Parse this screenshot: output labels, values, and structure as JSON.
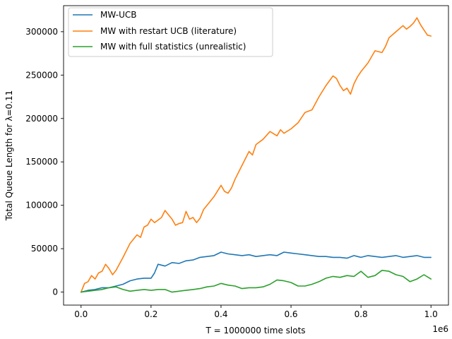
{
  "chart_data": {
    "type": "line",
    "title": "",
    "xlabel": "T = 1000000 time slots",
    "ylabel": "Total Queue Length for λ=0.11",
    "x_offset_label": "1e6",
    "xlim": [
      -0.05,
      1.05
    ],
    "ylim": [
      -15000,
      330000
    ],
    "x_ticks": [
      0.0,
      0.2,
      0.4,
      0.6,
      0.8,
      1.0
    ],
    "x_tick_labels": [
      "0.0",
      "0.2",
      "0.4",
      "0.6",
      "0.8",
      "1.0"
    ],
    "y_ticks": [
      0,
      50000,
      100000,
      150000,
      200000,
      250000,
      300000
    ],
    "y_tick_labels": [
      "0",
      "50000",
      "100000",
      "150000",
      "200000",
      "250000",
      "300000"
    ],
    "grid": false,
    "legend_position": "top-left",
    "series": [
      {
        "name": "MW-UCB",
        "color": "#1f77b4",
        "x": [
          0.0,
          0.02,
          0.04,
          0.06,
          0.08,
          0.1,
          0.12,
          0.14,
          0.16,
          0.18,
          0.2,
          0.21,
          0.22,
          0.24,
          0.26,
          0.28,
          0.3,
          0.32,
          0.34,
          0.36,
          0.38,
          0.4,
          0.42,
          0.44,
          0.46,
          0.48,
          0.5,
          0.52,
          0.54,
          0.56,
          0.58,
          0.6,
          0.62,
          0.64,
          0.66,
          0.68,
          0.7,
          0.72,
          0.74,
          0.76,
          0.78,
          0.8,
          0.82,
          0.84,
          0.86,
          0.88,
          0.9,
          0.92,
          0.94,
          0.96,
          0.98,
          1.0
        ],
        "y": [
          0,
          2000,
          3000,
          5000,
          5000,
          7000,
          9000,
          13000,
          15000,
          16000,
          16000,
          22000,
          32000,
          30000,
          34000,
          33000,
          36000,
          37000,
          40000,
          41000,
          42000,
          46000,
          44000,
          43000,
          42000,
          43000,
          41000,
          42000,
          43000,
          42000,
          46000,
          45000,
          44000,
          43000,
          42000,
          41000,
          41000,
          40000,
          40000,
          39000,
          42000,
          40000,
          42000,
          41000,
          40000,
          41000,
          42000,
          40000,
          41000,
          42000,
          40000,
          40000
        ]
      },
      {
        "name": "MW with restart UCB (literature)",
        "color": "#ff7f0e",
        "x": [
          0.0,
          0.01,
          0.02,
          0.03,
          0.04,
          0.05,
          0.06,
          0.07,
          0.08,
          0.09,
          0.1,
          0.12,
          0.14,
          0.16,
          0.17,
          0.18,
          0.19,
          0.2,
          0.21,
          0.22,
          0.23,
          0.24,
          0.25,
          0.26,
          0.27,
          0.28,
          0.29,
          0.3,
          0.31,
          0.32,
          0.33,
          0.34,
          0.35,
          0.36,
          0.38,
          0.4,
          0.41,
          0.42,
          0.43,
          0.44,
          0.46,
          0.48,
          0.49,
          0.5,
          0.52,
          0.54,
          0.56,
          0.57,
          0.58,
          0.6,
          0.62,
          0.64,
          0.66,
          0.68,
          0.7,
          0.72,
          0.73,
          0.74,
          0.75,
          0.76,
          0.77,
          0.78,
          0.79,
          0.8,
          0.82,
          0.84,
          0.86,
          0.87,
          0.88,
          0.9,
          0.92,
          0.93,
          0.94,
          0.95,
          0.96,
          0.97,
          0.98,
          0.99,
          1.0
        ],
        "y": [
          0,
          10000,
          12000,
          19000,
          15000,
          22000,
          24000,
          32000,
          27000,
          20000,
          25000,
          40000,
          56000,
          66000,
          63000,
          75000,
          77000,
          84000,
          80000,
          83000,
          86000,
          94000,
          89000,
          84000,
          77000,
          79000,
          80000,
          93000,
          84000,
          86000,
          80000,
          85000,
          95000,
          100000,
          110000,
          123000,
          116000,
          114000,
          120000,
          130000,
          146000,
          162000,
          158000,
          170000,
          176000,
          185000,
          180000,
          187000,
          183000,
          188000,
          195000,
          207000,
          210000,
          225000,
          238000,
          249000,
          246000,
          238000,
          232000,
          235000,
          228000,
          240000,
          248000,
          254000,
          264000,
          278000,
          276000,
          283000,
          293000,
          300000,
          307000,
          303000,
          306000,
          310000,
          316000,
          308000,
          302000,
          296000,
          295000
        ]
      },
      {
        "name": "MW with full statistics (unrealistic)",
        "color": "#2ca02c",
        "x": [
          0.0,
          0.02,
          0.04,
          0.06,
          0.08,
          0.1,
          0.12,
          0.14,
          0.16,
          0.18,
          0.2,
          0.22,
          0.24,
          0.26,
          0.28,
          0.3,
          0.32,
          0.34,
          0.36,
          0.38,
          0.4,
          0.42,
          0.44,
          0.46,
          0.48,
          0.5,
          0.52,
          0.54,
          0.56,
          0.58,
          0.6,
          0.62,
          0.64,
          0.66,
          0.68,
          0.7,
          0.72,
          0.74,
          0.76,
          0.78,
          0.8,
          0.82,
          0.84,
          0.86,
          0.88,
          0.9,
          0.92,
          0.94,
          0.96,
          0.98,
          1.0
        ],
        "y": [
          0,
          1000,
          2000,
          3000,
          5000,
          6000,
          3000,
          1000,
          2000,
          3000,
          2000,
          3000,
          3000,
          0,
          1000,
          2000,
          3000,
          4000,
          6000,
          7000,
          10000,
          8000,
          7000,
          4000,
          5000,
          5000,
          6000,
          9000,
          14000,
          13000,
          11000,
          7000,
          7000,
          9000,
          12000,
          16000,
          18000,
          17000,
          19000,
          18000,
          24000,
          17000,
          19000,
          25000,
          24000,
          20000,
          18000,
          12000,
          15000,
          20000,
          15000
        ]
      }
    ]
  }
}
